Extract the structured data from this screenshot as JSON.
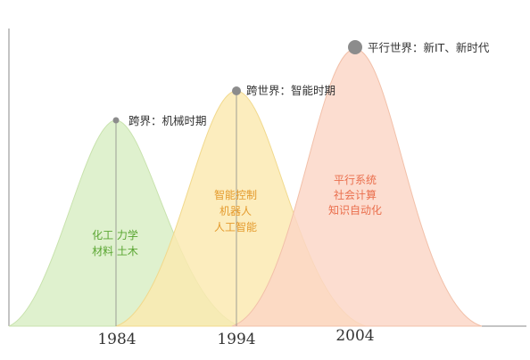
{
  "diagram": {
    "eras": [
      {
        "id": "era1",
        "year": "1984",
        "peak_label": "跨界：机械时期",
        "inner_lines": [
          "化工 力学",
          "材料 土木"
        ],
        "fill": "#d9efc6",
        "stroke": "#c8e2ad",
        "text_color": "#5aa632"
      },
      {
        "id": "era2",
        "year": "1994",
        "peak_label": "跨世界：智能时期",
        "inner_lines": [
          "智能控制",
          "机器人",
          "人工智能"
        ],
        "fill": "#fbe9b0",
        "stroke": "#f1d98d",
        "text_color": "#e49a2c"
      },
      {
        "id": "era3",
        "year": "2004",
        "peak_label": "平行世界：新IT、新时代",
        "inner_lines": [
          "平行系统",
          "社会计算",
          "知识自动化"
        ],
        "fill": "#fbd6c6",
        "stroke": "#f2c0a9",
        "text_color": "#ea6f4d"
      }
    ],
    "axis_color": "#8a8a8a",
    "marker_color": "#8c8c8c"
  }
}
